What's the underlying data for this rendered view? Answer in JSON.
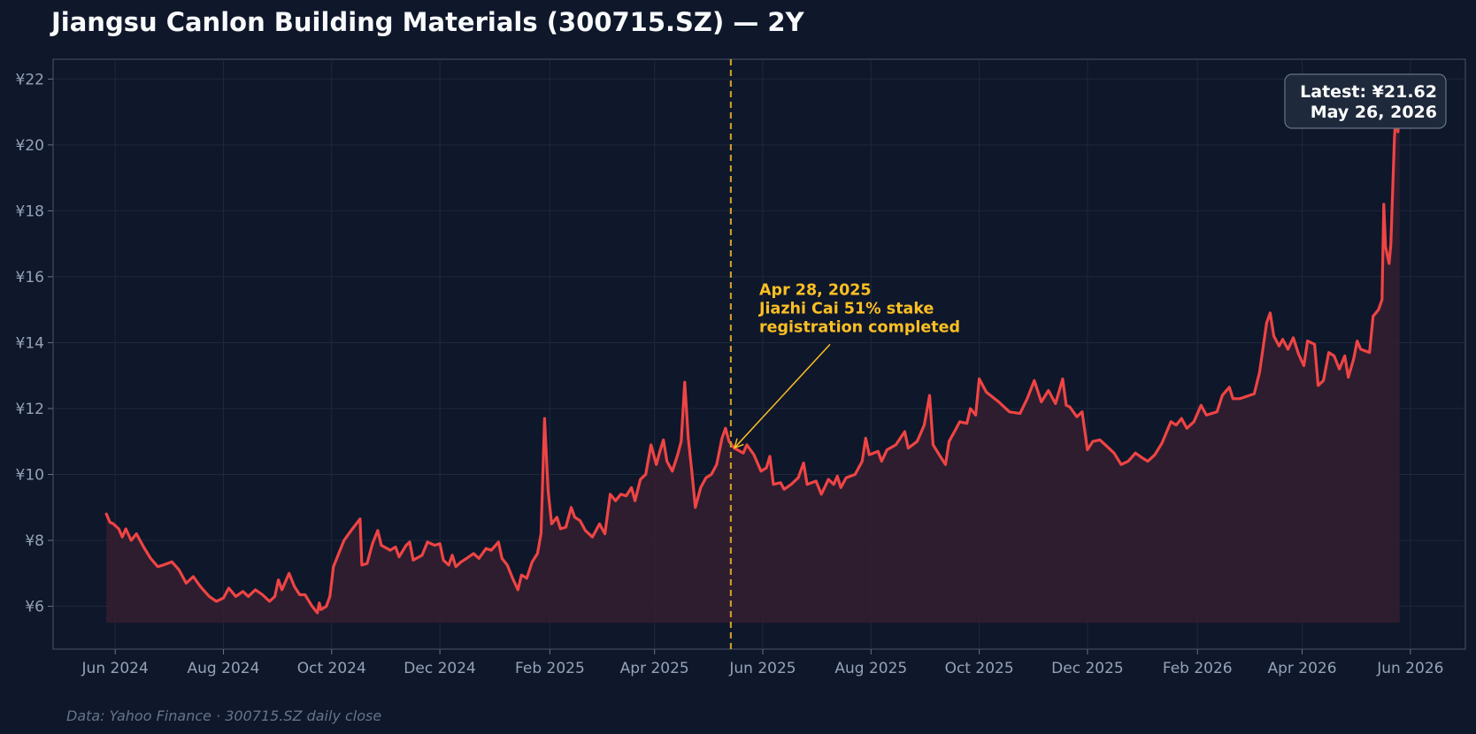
{
  "chart_data": {
    "type": "line",
    "title": "Jiangsu Canlon Building Materials (300715.SZ) — 2Y",
    "xlabel": "",
    "ylabel": "",
    "source_note": "Data: Yahoo Finance · 300715.SZ daily close",
    "y_ticks": [
      "¥6",
      "¥8",
      "¥10",
      "¥12",
      "¥14",
      "¥16",
      "¥18",
      "¥20",
      "¥22"
    ],
    "y_tick_values": [
      6,
      8,
      10,
      12,
      14,
      16,
      18,
      20,
      22
    ],
    "x_ticks": [
      "Jun 2024",
      "Aug 2024",
      "Oct 2024",
      "Dec 2024",
      "Feb 2025",
      "Apr 2025",
      "Jun 2025",
      "Aug 2025",
      "Oct 2025",
      "Dec 2025",
      "Feb 2026",
      "Apr 2026",
      "Jun 2026"
    ],
    "x_tick_dates": [
      "2024-06-01",
      "2024-08-01",
      "2024-10-01",
      "2024-12-01",
      "2025-02-01",
      "2025-04-01",
      "2025-06-01",
      "2025-08-01",
      "2025-10-01",
      "2025-12-01",
      "2026-02-01",
      "2026-04-01",
      "2026-06-01"
    ],
    "xlim": [
      "2024-04-27",
      "2026-07-02"
    ],
    "ylim": [
      4.7,
      22.6
    ],
    "grid": true,
    "legend": "none",
    "line_color": "#ef4444",
    "fill_color": "#321e30",
    "series": [
      {
        "points": [
          [
            "2024-05-27",
            8.8
          ],
          [
            "2024-05-29",
            8.55
          ],
          [
            "2024-05-31",
            8.5
          ],
          [
            "2024-06-03",
            8.35
          ],
          [
            "2024-06-05",
            8.1
          ],
          [
            "2024-06-07",
            8.35
          ],
          [
            "2024-06-10",
            8.0
          ],
          [
            "2024-06-13",
            8.2
          ],
          [
            "2024-06-17",
            7.8
          ],
          [
            "2024-06-21",
            7.45
          ],
          [
            "2024-06-25",
            7.2
          ],
          [
            "2024-06-28",
            7.25
          ],
          [
            "2024-07-03",
            7.35
          ],
          [
            "2024-07-07",
            7.1
          ],
          [
            "2024-07-11",
            6.7
          ],
          [
            "2024-07-15",
            6.9
          ],
          [
            "2024-07-19",
            6.6
          ],
          [
            "2024-07-24",
            6.3
          ],
          [
            "2024-07-28",
            6.15
          ],
          [
            "2024-08-01",
            6.25
          ],
          [
            "2024-08-04",
            6.55
          ],
          [
            "2024-08-08",
            6.3
          ],
          [
            "2024-08-12",
            6.45
          ],
          [
            "2024-08-15",
            6.3
          ],
          [
            "2024-08-19",
            6.5
          ],
          [
            "2024-08-23",
            6.35
          ],
          [
            "2024-08-27",
            6.15
          ],
          [
            "2024-08-30",
            6.3
          ],
          [
            "2024-09-01",
            6.8
          ],
          [
            "2024-09-03",
            6.5
          ],
          [
            "2024-09-07",
            7.0
          ],
          [
            "2024-09-10",
            6.6
          ],
          [
            "2024-09-13",
            6.35
          ],
          [
            "2024-09-16",
            6.35
          ],
          [
            "2024-09-20",
            6.0
          ],
          [
            "2024-09-23",
            5.8
          ],
          [
            "2024-09-24",
            6.1
          ],
          [
            "2024-09-25",
            5.9
          ],
          [
            "2024-09-28",
            6.0
          ],
          [
            "2024-09-30",
            6.3
          ],
          [
            "2024-10-02",
            7.2
          ],
          [
            "2024-10-08",
            8.0
          ],
          [
            "2024-10-12",
            8.3
          ],
          [
            "2024-10-17",
            8.65
          ],
          [
            "2024-10-18",
            7.25
          ],
          [
            "2024-10-21",
            7.3
          ],
          [
            "2024-10-24",
            7.9
          ],
          [
            "2024-10-27",
            8.3
          ],
          [
            "2024-10-29",
            7.85
          ],
          [
            "2024-11-03",
            7.7
          ],
          [
            "2024-11-06",
            7.8
          ],
          [
            "2024-11-08",
            7.5
          ],
          [
            "2024-11-12",
            7.85
          ],
          [
            "2024-11-14",
            7.95
          ],
          [
            "2024-11-16",
            7.4
          ],
          [
            "2024-11-21",
            7.55
          ],
          [
            "2024-11-24",
            7.95
          ],
          [
            "2024-11-28",
            7.85
          ],
          [
            "2024-12-01",
            7.9
          ],
          [
            "2024-12-03",
            7.4
          ],
          [
            "2024-12-06",
            7.25
          ],
          [
            "2024-12-08",
            7.55
          ],
          [
            "2024-12-10",
            7.2
          ],
          [
            "2024-12-13",
            7.35
          ],
          [
            "2024-12-16",
            7.45
          ],
          [
            "2024-12-20",
            7.6
          ],
          [
            "2024-12-23",
            7.45
          ],
          [
            "2024-12-27",
            7.75
          ],
          [
            "2024-12-30",
            7.7
          ],
          [
            "2025-01-03",
            7.95
          ],
          [
            "2025-01-05",
            7.45
          ],
          [
            "2025-01-08",
            7.25
          ],
          [
            "2025-01-11",
            6.85
          ],
          [
            "2025-01-14",
            6.5
          ],
          [
            "2025-01-16",
            6.95
          ],
          [
            "2025-01-19",
            6.85
          ],
          [
            "2025-01-22",
            7.35
          ],
          [
            "2025-01-25",
            7.6
          ],
          [
            "2025-01-27",
            8.2
          ],
          [
            "2025-01-29",
            11.7
          ],
          [
            "2025-01-31",
            9.5
          ],
          [
            "2025-02-02",
            8.5
          ],
          [
            "2025-02-05",
            8.7
          ],
          [
            "2025-02-07",
            8.35
          ],
          [
            "2025-02-10",
            8.4
          ],
          [
            "2025-02-13",
            9.0
          ],
          [
            "2025-02-15",
            8.7
          ],
          [
            "2025-02-18",
            8.6
          ],
          [
            "2025-02-21",
            8.3
          ],
          [
            "2025-02-25",
            8.1
          ],
          [
            "2025-02-27",
            8.3
          ],
          [
            "2025-03-01",
            8.5
          ],
          [
            "2025-03-04",
            8.2
          ],
          [
            "2025-03-07",
            9.4
          ],
          [
            "2025-03-10",
            9.2
          ],
          [
            "2025-03-13",
            9.4
          ],
          [
            "2025-03-16",
            9.35
          ],
          [
            "2025-03-19",
            9.6
          ],
          [
            "2025-03-21",
            9.2
          ],
          [
            "2025-03-24",
            9.85
          ],
          [
            "2025-03-27",
            10.0
          ],
          [
            "2025-03-30",
            10.9
          ],
          [
            "2025-04-02",
            10.3
          ],
          [
            "2025-04-04",
            10.7
          ],
          [
            "2025-04-06",
            11.05
          ],
          [
            "2025-04-08",
            10.4
          ],
          [
            "2025-04-11",
            10.1
          ],
          [
            "2025-04-14",
            10.6
          ],
          [
            "2025-04-16",
            11.0
          ],
          [
            "2025-04-18",
            12.8
          ],
          [
            "2025-04-20",
            11.1
          ],
          [
            "2025-04-22",
            10.1
          ],
          [
            "2025-04-24",
            9.0
          ],
          [
            "2025-04-27",
            9.6
          ],
          [
            "2025-04-30",
            9.9
          ],
          [
            "2025-05-03",
            10.0
          ],
          [
            "2025-05-06",
            10.3
          ],
          [
            "2025-05-09",
            11.1
          ],
          [
            "2025-05-11",
            11.4
          ],
          [
            "2025-05-13",
            11.0
          ],
          [
            "2025-05-16",
            10.8
          ],
          [
            "2025-05-21",
            10.65
          ],
          [
            "2025-05-23",
            10.9
          ],
          [
            "2025-05-27",
            10.6
          ],
          [
            "2025-05-31",
            10.1
          ],
          [
            "2025-06-03",
            10.2
          ],
          [
            "2025-06-05",
            10.55
          ],
          [
            "2025-06-07",
            9.7
          ],
          [
            "2025-06-11",
            9.75
          ],
          [
            "2025-06-13",
            9.55
          ],
          [
            "2025-06-17",
            9.7
          ],
          [
            "2025-06-21",
            9.9
          ],
          [
            "2025-06-24",
            10.35
          ],
          [
            "2025-06-26",
            9.7
          ],
          [
            "2025-07-01",
            9.8
          ],
          [
            "2025-07-04",
            9.4
          ],
          [
            "2025-07-08",
            9.85
          ],
          [
            "2025-07-11",
            9.7
          ],
          [
            "2025-07-13",
            9.95
          ],
          [
            "2025-07-15",
            9.6
          ],
          [
            "2025-07-18",
            9.9
          ],
          [
            "2025-07-23",
            10.0
          ],
          [
            "2025-07-27",
            10.4
          ],
          [
            "2025-07-29",
            11.1
          ],
          [
            "2025-07-31",
            10.6
          ],
          [
            "2025-08-05",
            10.7
          ],
          [
            "2025-08-07",
            10.4
          ],
          [
            "2025-08-10",
            10.75
          ],
          [
            "2025-08-15",
            10.9
          ],
          [
            "2025-08-20",
            11.3
          ],
          [
            "2025-08-22",
            10.8
          ],
          [
            "2025-08-27",
            11.0
          ],
          [
            "2025-08-31",
            11.5
          ],
          [
            "2025-09-03",
            12.4
          ],
          [
            "2025-09-05",
            10.9
          ],
          [
            "2025-09-09",
            10.55
          ],
          [
            "2025-09-12",
            10.3
          ],
          [
            "2025-09-14",
            11.0
          ],
          [
            "2025-09-17",
            11.3
          ],
          [
            "2025-09-20",
            11.6
          ],
          [
            "2025-09-24",
            11.55
          ],
          [
            "2025-09-26",
            12.0
          ],
          [
            "2025-09-29",
            11.8
          ],
          [
            "2025-10-01",
            12.9
          ],
          [
            "2025-10-05",
            12.5
          ],
          [
            "2025-10-12",
            12.2
          ],
          [
            "2025-10-18",
            11.9
          ],
          [
            "2025-10-24",
            11.85
          ],
          [
            "2025-10-28",
            12.3
          ],
          [
            "2025-11-01",
            12.85
          ],
          [
            "2025-11-05",
            12.2
          ],
          [
            "2025-11-09",
            12.55
          ],
          [
            "2025-11-13",
            12.15
          ],
          [
            "2025-11-17",
            12.9
          ],
          [
            "2025-11-19",
            12.1
          ],
          [
            "2025-11-21",
            12.05
          ],
          [
            "2025-11-25",
            11.75
          ],
          [
            "2025-11-28",
            11.9
          ],
          [
            "2025-12-01",
            10.75
          ],
          [
            "2025-12-04",
            11.0
          ],
          [
            "2025-12-08",
            11.05
          ],
          [
            "2025-12-12",
            10.85
          ],
          [
            "2025-12-16",
            10.65
          ],
          [
            "2025-12-20",
            10.3
          ],
          [
            "2025-12-24",
            10.4
          ],
          [
            "2025-12-28",
            10.65
          ],
          [
            "2026-01-01",
            10.5
          ],
          [
            "2026-01-04",
            10.4
          ],
          [
            "2026-01-08",
            10.6
          ],
          [
            "2026-01-12",
            10.95
          ],
          [
            "2026-01-17",
            11.6
          ],
          [
            "2026-01-20",
            11.5
          ],
          [
            "2026-01-23",
            11.7
          ],
          [
            "2026-01-26",
            11.4
          ],
          [
            "2026-01-30",
            11.6
          ],
          [
            "2026-02-03",
            12.1
          ],
          [
            "2026-02-06",
            11.8
          ],
          [
            "2026-02-12",
            11.9
          ],
          [
            "2026-02-15",
            12.4
          ],
          [
            "2026-02-19",
            12.65
          ],
          [
            "2026-02-21",
            12.3
          ],
          [
            "2026-02-25",
            12.3
          ],
          [
            "2026-03-05",
            12.45
          ],
          [
            "2026-03-08",
            13.1
          ],
          [
            "2026-03-12",
            14.6
          ],
          [
            "2026-03-14",
            14.9
          ],
          [
            "2026-03-16",
            14.2
          ],
          [
            "2026-03-19",
            13.9
          ],
          [
            "2026-03-21",
            14.1
          ],
          [
            "2026-03-24",
            13.8
          ],
          [
            "2026-03-27",
            14.15
          ],
          [
            "2026-03-30",
            13.65
          ],
          [
            "2026-04-02",
            13.3
          ],
          [
            "2026-04-04",
            14.05
          ],
          [
            "2026-04-08",
            13.95
          ],
          [
            "2026-04-10",
            12.7
          ],
          [
            "2026-04-13",
            12.85
          ],
          [
            "2026-04-16",
            13.7
          ],
          [
            "2026-04-19",
            13.6
          ],
          [
            "2026-04-22",
            13.2
          ],
          [
            "2026-04-25",
            13.6
          ],
          [
            "2026-04-27",
            12.95
          ],
          [
            "2026-04-30",
            13.5
          ],
          [
            "2026-05-02",
            14.05
          ],
          [
            "2026-05-04",
            13.8
          ],
          [
            "2026-05-09",
            13.7
          ],
          [
            "2026-05-11",
            14.8
          ],
          [
            "2026-05-14",
            15.0
          ],
          [
            "2026-05-16",
            15.3
          ],
          [
            "2026-05-17",
            18.2
          ],
          [
            "2026-05-18",
            16.9
          ],
          [
            "2026-05-20",
            16.4
          ],
          [
            "2026-05-21",
            17.0
          ],
          [
            "2026-05-23",
            20.2
          ],
          [
            "2026-05-24",
            21.1
          ],
          [
            "2026-05-25",
            20.4
          ],
          [
            "2026-05-26",
            21.62
          ]
        ]
      }
    ],
    "event_date": "2025-05-14",
    "annotation": {
      "lines": [
        "Apr 28, 2025",
        "Jiazhi Cai 51% stake",
        "registration completed"
      ],
      "point_date": "2025-05-15",
      "point_value": 10.75,
      "label_date": "2025-05-30",
      "label_value": 15.45
    },
    "latest_label": [
      "Latest: ¥21.62",
      "May 26, 2026"
    ]
  }
}
